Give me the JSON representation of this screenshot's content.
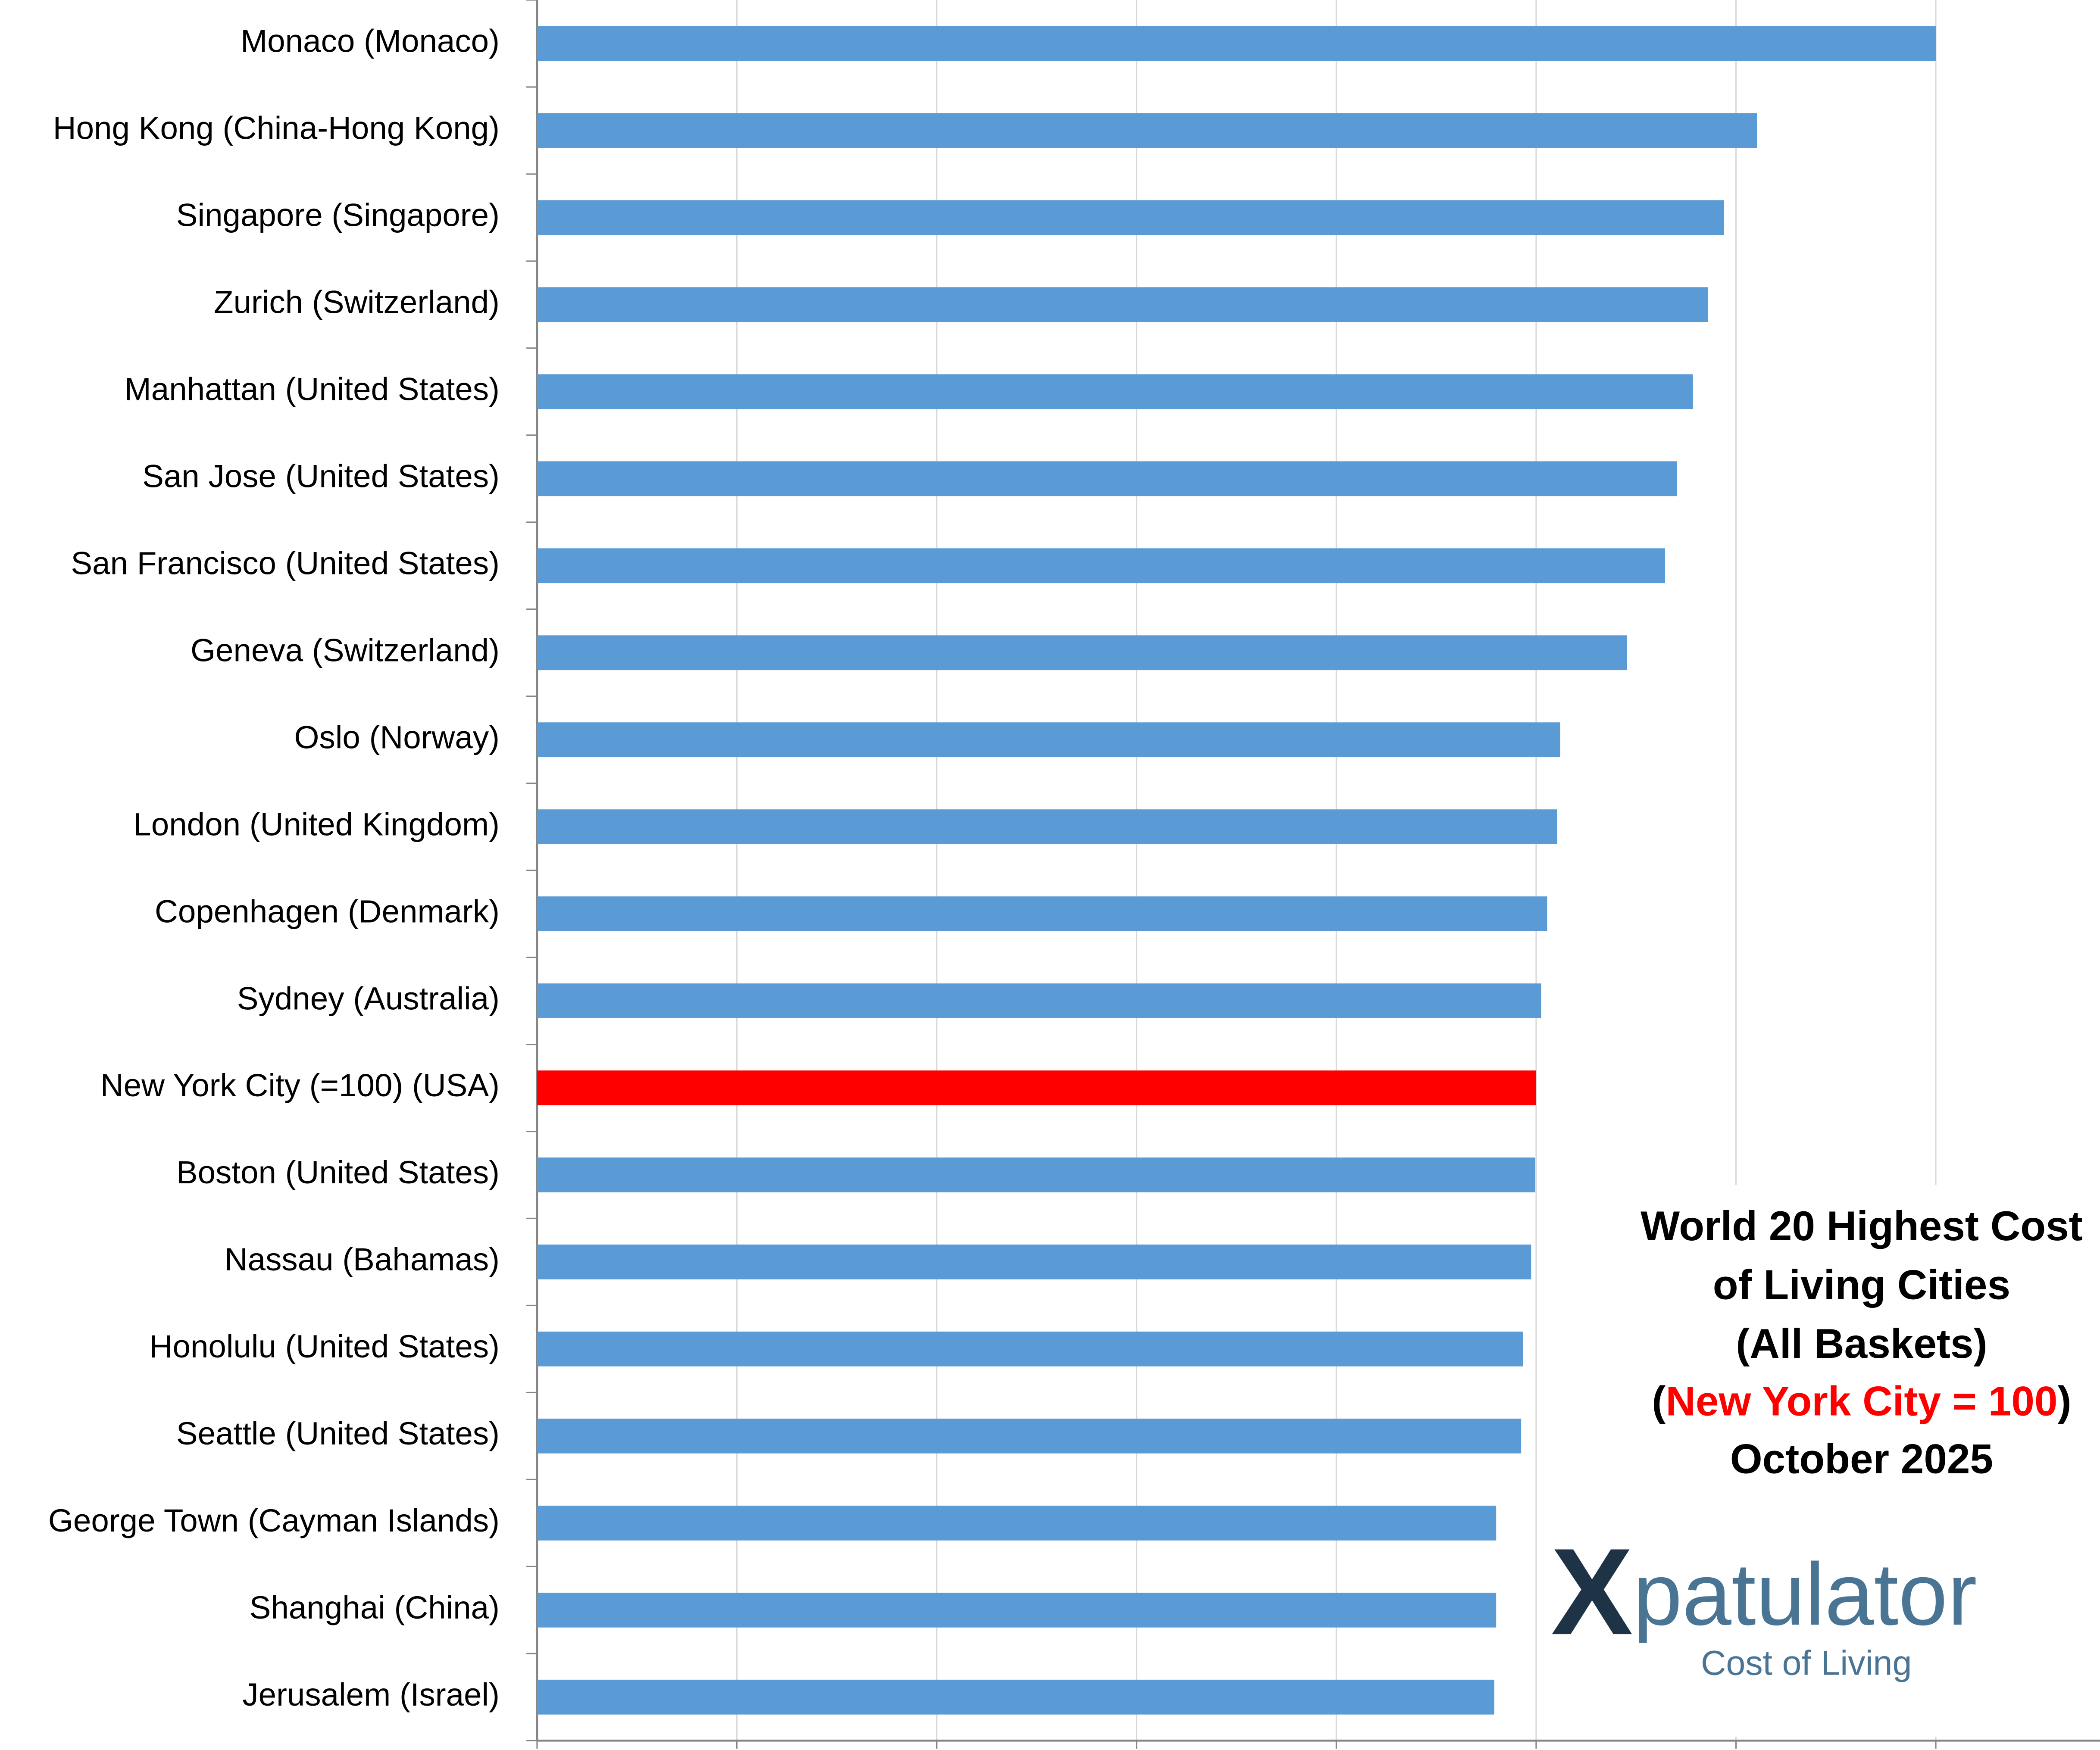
{
  "chart_data": {
    "type": "barh",
    "title": [
      "World 20 Highest Cost",
      "of Living Cities",
      "(All Baskets)"
    ],
    "subtitle": [
      "(",
      "New York City = 100",
      ")"
    ],
    "subtitle_colors": [
      "#000000",
      "#ff0000",
      "#000000"
    ],
    "date": "October 2025",
    "logo": [
      "X",
      "patulator"
    ],
    "logo_tagline": "Cost of Living",
    "categories": [
      "Monaco (Monaco)",
      "Hong Kong (China-Hong Kong)",
      "Singapore (Singapore)",
      "Zurich (Switzerland)",
      "Manhattan (United States)",
      "San Jose (United States)",
      "San Francisco (United States)",
      "Geneva (Switzerland)",
      "Oslo (Norway)",
      "London (United Kingdom)",
      "Copenhagen (Denmark)",
      "Sydney (Australia)",
      "New York City (=100) (USA)",
      "Boston (United States)",
      "Nassau (Bahamas)",
      "Honolulu (United States)",
      "Seattle (United States)",
      "George Town (Cayman Islands)",
      "Shanghai (China)",
      "Jerusalem (Israel)"
    ],
    "values": [
      140,
      122.1,
      118.8,
      117.2,
      115.7,
      114.1,
      112.9,
      109.1,
      102.4,
      102.1,
      101.1,
      100.5,
      100,
      99.9,
      99.5,
      98.7,
      98.5,
      96,
      96,
      95.8
    ],
    "colors": [
      "#5b9bd5",
      "#5b9bd5",
      "#5b9bd5",
      "#5b9bd5",
      "#5b9bd5",
      "#5b9bd5",
      "#5b9bd5",
      "#5b9bd5",
      "#5b9bd5",
      "#5b9bd5",
      "#5b9bd5",
      "#5b9bd5",
      "#ff0000",
      "#5b9bd5",
      "#5b9bd5",
      "#5b9bd5",
      "#5b9bd5",
      "#5b9bd5",
      "#5b9bd5",
      "#5b9bd5"
    ],
    "xlim": [
      0,
      156
    ],
    "xticks": [
      0,
      20,
      40,
      60,
      80,
      100,
      120,
      140
    ],
    "grid": true
  }
}
